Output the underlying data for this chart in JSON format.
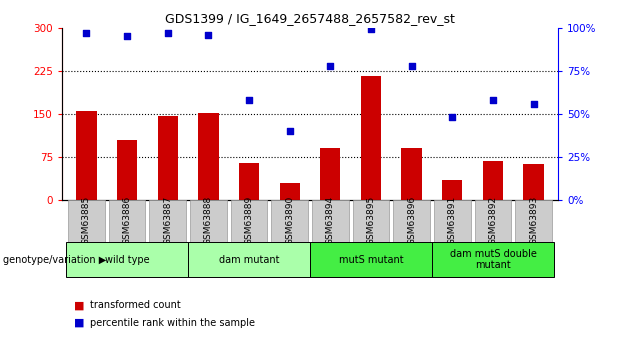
{
  "title": "GDS1399 / IG_1649_2657488_2657582_rev_st",
  "samples": [
    "GSM63885",
    "GSM63886",
    "GSM63887",
    "GSM63888",
    "GSM63889",
    "GSM63890",
    "GSM63894",
    "GSM63895",
    "GSM63896",
    "GSM63891",
    "GSM63892",
    "GSM63893"
  ],
  "transformed_count": [
    155,
    105,
    147,
    152,
    65,
    30,
    90,
    215,
    90,
    35,
    68,
    62
  ],
  "percentile_rank": [
    97,
    95,
    97,
    96,
    58,
    40,
    78,
    99,
    78,
    48,
    58,
    56
  ],
  "groups": [
    {
      "label": "wild type",
      "start": 0,
      "end": 3,
      "color": "#aaffaa"
    },
    {
      "label": "dam mutant",
      "start": 3,
      "end": 6,
      "color": "#aaffaa"
    },
    {
      "label": "mutS mutant",
      "start": 6,
      "end": 9,
      "color": "#44ee44"
    },
    {
      "label": "dam mutS double\nmutant",
      "start": 9,
      "end": 12,
      "color": "#44ee44"
    }
  ],
  "ylim_left": [
    0,
    300
  ],
  "ylim_right": [
    0,
    100
  ],
  "yticks_left": [
    0,
    75,
    150,
    225,
    300
  ],
  "yticks_right": [
    0,
    25,
    50,
    75,
    100
  ],
  "ytick_labels_right": [
    "0%",
    "25%",
    "50%",
    "75%",
    "100%"
  ],
  "bar_color": "#cc0000",
  "dot_color": "#0000cc",
  "bar_width": 0.5,
  "tick_label_bg": "#cccccc",
  "legend_bar_label": "transformed count",
  "legend_dot_label": "percentile rank within the sample",
  "genotype_label": "genotype/variation"
}
